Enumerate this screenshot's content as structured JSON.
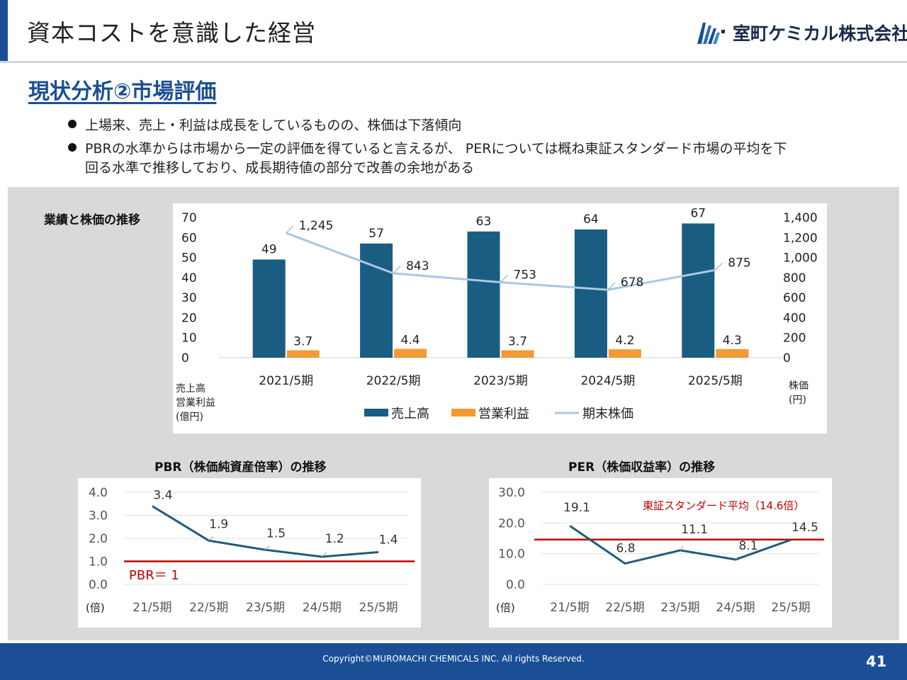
{
  "header": {
    "title": "資本コストを意識した経営",
    "company_name": "室町ケミカル株式会社"
  },
  "section_title": "現状分析②市場評価",
  "bullets": [
    "上場来、売上・利益は成長をしているものの、株価は下落傾向",
    "PBRの水準からは市場から一定の評価を得ていると言えるが、 PERについては概ね東証スタンダード市場の平均を下",
    "回る水準で推移しており、成長期待値の部分で改善の余地がある"
  ],
  "colors": {
    "brand_blue": "#1a4f96",
    "sales_bar": "#1a5d82",
    "profit_bar": "#f39a33",
    "price_line": "#a9c8e3",
    "ratio_line": "#1f5c7a",
    "reference_red": "#c00000"
  },
  "chart_data": [
    {
      "type": "bar",
      "title": "業績と株価の推移",
      "categories": [
        "2021/5期",
        "2022/5期",
        "2023/5期",
        "2024/5期",
        "2025/5期"
      ],
      "series": [
        {
          "name": "売上高",
          "axis": "left",
          "values": [
            49,
            57,
            63,
            64,
            67
          ]
        },
        {
          "name": "営業利益",
          "axis": "left",
          "values": [
            3.7,
            4.4,
            3.7,
            4.2,
            4.3
          ]
        },
        {
          "name": "期末株価",
          "axis": "right",
          "type": "line",
          "values": [
            1245,
            843,
            753,
            678,
            875
          ],
          "labels": [
            "1,245",
            "843",
            "753",
            "678",
            "875"
          ]
        }
      ],
      "y_left": {
        "range": [
          0,
          70
        ],
        "ticks": [
          "0",
          "10",
          "20",
          "30",
          "40",
          "50",
          "60",
          "70"
        ],
        "label_lines": [
          "売上高",
          "営業利益",
          "(億円)"
        ]
      },
      "y_right": {
        "range": [
          0,
          1400
        ],
        "ticks": [
          "0",
          "200",
          "400",
          "600",
          "800",
          "1,000",
          "1,200",
          "1,400"
        ],
        "label_lines": [
          "株価",
          "(円)"
        ]
      },
      "legend_position": "bottom"
    },
    {
      "type": "line",
      "title": "PBR（株価純資産倍率）の推移",
      "categories": [
        "21/5期",
        "22/5期",
        "23/5期",
        "24/5期",
        "25/5期"
      ],
      "values": [
        3.4,
        1.9,
        1.5,
        1.2,
        1.4
      ],
      "labels": [
        "3.4",
        "1.9",
        "1.5",
        "1.2",
        "1.4"
      ],
      "ylim": [
        0,
        4
      ],
      "ticks": [
        "0.0",
        "1.0",
        "2.0",
        "3.0",
        "4.0"
      ],
      "ylabel": "(倍)",
      "reference": {
        "value": 1,
        "label": "PBR＝ 1"
      }
    },
    {
      "type": "line",
      "title": "PER（株価収益率）の推移",
      "categories": [
        "21/5期",
        "22/5期",
        "23/5期",
        "24/5期",
        "25/5期"
      ],
      "values": [
        19.1,
        6.8,
        11.1,
        8.1,
        14.5
      ],
      "labels": [
        "19.1",
        "6.8",
        "11.1",
        "8.1",
        "14.5"
      ],
      "ylim": [
        0,
        30
      ],
      "ticks": [
        "0.0",
        "10.0",
        "20.0",
        "30.0"
      ],
      "ylabel": "(倍)",
      "reference": {
        "value": 14.6,
        "label": "東証スタンダード平均（14.6倍）"
      }
    }
  ],
  "footer": {
    "copyright": "Copyright©MUROMACHI CHEMICALS INC. All rights Reserved.",
    "page_number": "41"
  }
}
